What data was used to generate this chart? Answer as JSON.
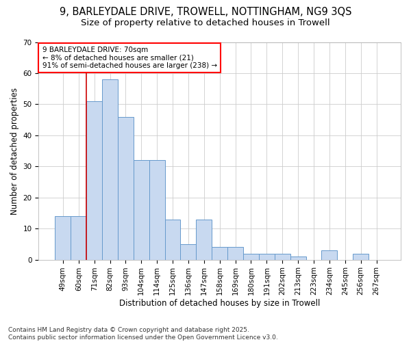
{
  "title_line1": "9, BARLEYDALE DRIVE, TROWELL, NOTTINGHAM, NG9 3QS",
  "title_line2": "Size of property relative to detached houses in Trowell",
  "xlabel": "Distribution of detached houses by size in Trowell",
  "ylabel": "Number of detached properties",
  "categories": [
    "49sqm",
    "60sqm",
    "71sqm",
    "82sqm",
    "93sqm",
    "104sqm",
    "114sqm",
    "125sqm",
    "136sqm",
    "147sqm",
    "158sqm",
    "169sqm",
    "180sqm",
    "191sqm",
    "202sqm",
    "213sqm",
    "223sqm",
    "234sqm",
    "245sqm",
    "256sqm",
    "267sqm"
  ],
  "values": [
    14,
    14,
    51,
    58,
    46,
    32,
    32,
    13,
    5,
    13,
    4,
    4,
    2,
    2,
    2,
    1,
    0,
    3,
    0,
    2,
    0
  ],
  "bar_color": "#c8d9f0",
  "bar_edge_color": "#6699cc",
  "vline_color": "#cc0000",
  "annotation_text": "9 BARLEYDALE DRIVE: 70sqm\n← 8% of detached houses are smaller (21)\n91% of semi-detached houses are larger (238) →",
  "ylim": [
    0,
    70
  ],
  "yticks": [
    0,
    10,
    20,
    30,
    40,
    50,
    60,
    70
  ],
  "grid_color": "#cccccc",
  "plot_bg_color": "#ffffff",
  "fig_bg_color": "#ffffff",
  "footer_text": "Contains HM Land Registry data © Crown copyright and database right 2025.\nContains public sector information licensed under the Open Government Licence v3.0.",
  "title_fontsize": 10.5,
  "subtitle_fontsize": 9.5,
  "axis_label_fontsize": 8.5,
  "tick_fontsize": 7.5,
  "annotation_fontsize": 7.5,
  "footer_fontsize": 6.5
}
